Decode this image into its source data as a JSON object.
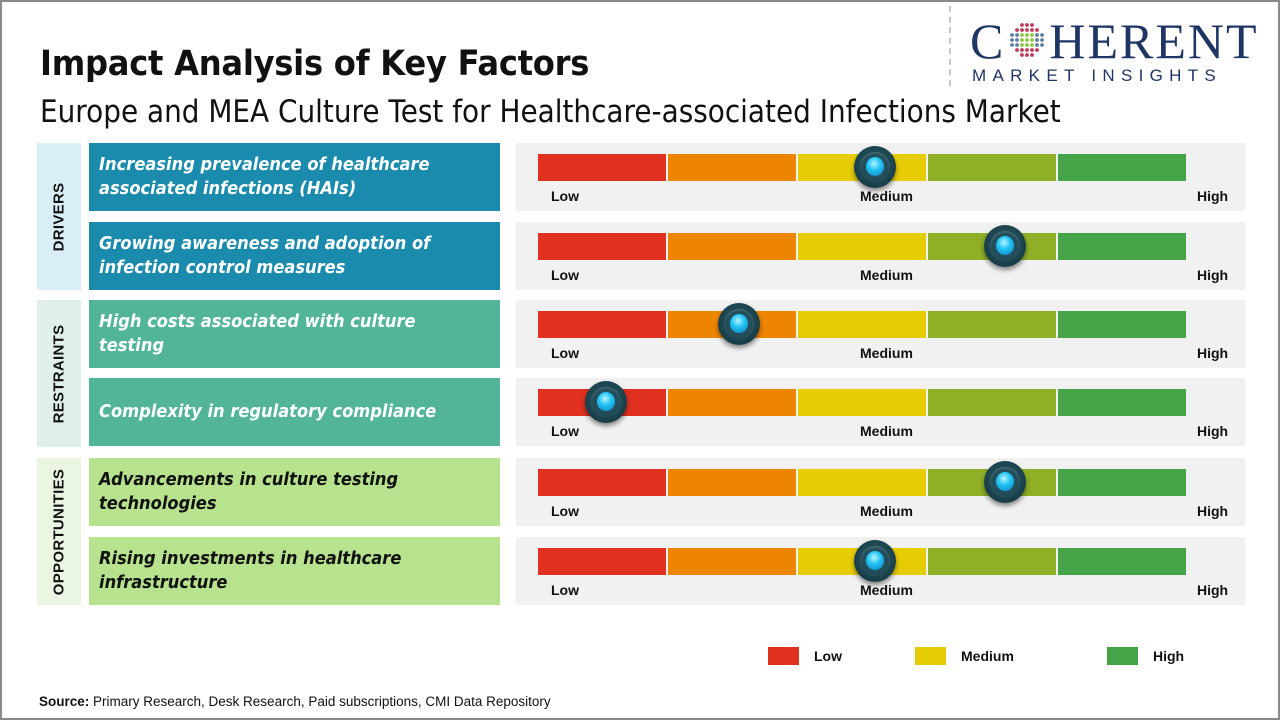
{
  "title": "Impact Analysis of Key Factors",
  "subtitle": "Europe and MEA Culture Test for Healthcare-associated Infections Market",
  "logo": {
    "word_first": "C",
    "word_rest": "HERENT",
    "sub": "MARKET INSIGHTS",
    "icon": "globe-dots-icon"
  },
  "colors": {
    "segments": [
      "#e03020",
      "#ee8500",
      "#e6cc05",
      "#8faf26",
      "#45a447"
    ],
    "drivers_bg": "#1a8aad",
    "drivers_cat_bg": "#daeef6",
    "restraints_bg": "#52b59a",
    "restraints_cat_bg": "#e0efec",
    "opportunities_bg": "#b7e28e",
    "opportunities_cat_bg": "#eaf6e1"
  },
  "scale_labels": {
    "low": "Low",
    "medium": "Medium",
    "high": "High"
  },
  "chart_data": {
    "type": "table",
    "title": "Impact Analysis of Key Factors",
    "subtitle": "Europe and MEA Culture Test for Healthcare-associated Infections Market",
    "scale": {
      "min_label": "Low",
      "mid_label": "Medium",
      "max_label": "High",
      "range": [
        0,
        1
      ]
    },
    "categories": [
      {
        "name": "DRIVERS",
        "factors": [
          {
            "label": "Increasing prevalence of healthcare\nassociated infections (HAIs)",
            "impact": 0.52
          },
          {
            "label": "Growing awareness and adoption of\ninfection control measures",
            "impact": 0.72
          }
        ]
      },
      {
        "name": "RESTRAINTS",
        "factors": [
          {
            "label": "High costs associated with culture testing",
            "impact": 0.31
          },
          {
            "label": "Complexity in regulatory compliance",
            "impact": 0.105
          }
        ]
      },
      {
        "name": "OPPORTUNITIES",
        "factors": [
          {
            "label": "Advancements in culture testing\ntechnologies",
            "impact": 0.72
          },
          {
            "label": "Rising investments in healthcare\ninfrastructure",
            "impact": 0.52
          }
        ]
      }
    ],
    "legend": [
      {
        "label": "Low",
        "color": "#e03020"
      },
      {
        "label": "Medium",
        "color": "#e6cc05"
      },
      {
        "label": "High",
        "color": "#45a447"
      }
    ],
    "legend_position": "bottom-right"
  },
  "source": {
    "label": "Source:",
    "text": " Primary Research, Desk Research, Paid subscriptions, CMI Data Repository"
  }
}
